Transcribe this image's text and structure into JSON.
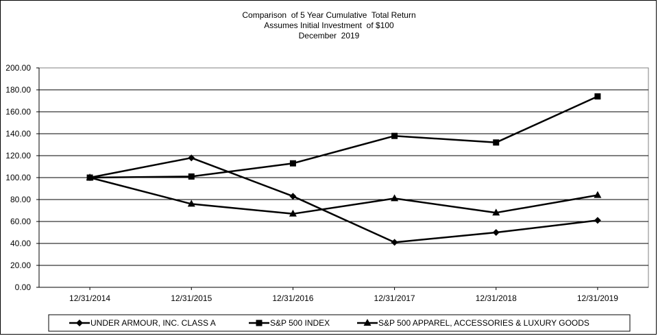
{
  "chart_data": {
    "type": "line",
    "title_lines": [
      "Comparison  of 5 Year Cumulative  Total Return",
      "Assumes Initial Investment  of $100",
      "December  2019"
    ],
    "categories": [
      "12/31/2014",
      "12/31/2015",
      "12/31/2016",
      "12/31/2017",
      "12/31/2018",
      "12/31/2019"
    ],
    "y_ticks": [
      "0.00",
      "20.00",
      "40.00",
      "60.00",
      "80.00",
      "100.00",
      "120.00",
      "140.00",
      "160.00",
      "180.00",
      "200.00"
    ],
    "ylim": [
      0,
      200
    ],
    "grid": true,
    "legend_position": "bottom",
    "series": [
      {
        "name": "UNDER ARMOUR, INC. CLASS A",
        "marker": "diamond",
        "values": [
          100,
          118,
          83,
          41,
          50,
          61
        ]
      },
      {
        "name": "S&P 500 INDEX",
        "marker": "square",
        "values": [
          100,
          101,
          113,
          138,
          132,
          174
        ]
      },
      {
        "name": "S&P 500 APPAREL, ACCESSORIES & LUXURY GOODS",
        "marker": "triangle",
        "values": [
          100,
          76,
          67,
          81,
          68,
          84
        ]
      }
    ]
  }
}
